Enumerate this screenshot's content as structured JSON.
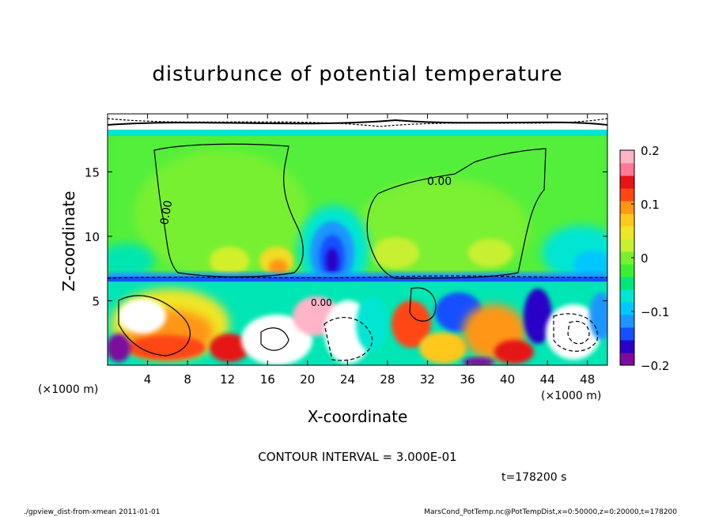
{
  "chart_data": {
    "type": "heatmap",
    "title": "disturbunce of potential temperature",
    "xlabel": "X-coordinate",
    "ylabel": "Z-coordinate",
    "x_unit": "(×1000 m)",
    "y_unit": "(×1000 m)",
    "xlim": [
      0,
      50
    ],
    "ylim": [
      0,
      19.5
    ],
    "x_ticks": [
      4,
      8,
      12,
      16,
      20,
      24,
      28,
      32,
      36,
      40,
      44,
      48
    ],
    "y_ticks": [
      5,
      10,
      15
    ],
    "colorbar": {
      "min": -0.2,
      "max": 0.2,
      "ticks": [
        0.2,
        0.1,
        0,
        -0.1,
        -0.2
      ],
      "tick_labels": [
        "0.2",
        "0.1",
        "0",
        "−0.1",
        "−0.2"
      ],
      "colors": [
        "#7d0b9e",
        "#2a00c8",
        "#1450ff",
        "#1e96ff",
        "#00c8ff",
        "#00e6d2",
        "#00e678",
        "#3cef32",
        "#78f032",
        "#c8f032",
        "#f0e628",
        "#ffc81e",
        "#ff9614",
        "#ff4614",
        "#e61414",
        "#ff7896",
        "#ffb4c8"
      ]
    },
    "contour_labels": [
      "0.00",
      "0.00",
      "0.00"
    ],
    "contour_interval_text": "CONTOUR INTERVAL = 3.000E-01",
    "time_text": "t=178200 s",
    "regions": [
      {
        "name": "upper-green-layer",
        "z_range": [
          7,
          18.5
        ],
        "value": 0.0
      },
      {
        "name": "warm-pocket-left",
        "x": 16,
        "z": 8,
        "value": 0.09
      },
      {
        "name": "warm-pocket-mid",
        "x": 11,
        "z": 8,
        "value": 0.07
      },
      {
        "name": "cold-column",
        "x": 22.5,
        "z": 8.5,
        "value": -0.15
      },
      {
        "name": "cold-pocket-right",
        "x": 46,
        "z": 9,
        "value": -0.06
      },
      {
        "name": "inversion-band",
        "z": 7,
        "value": -0.12
      },
      {
        "name": "lower-boundary-layer",
        "z_range": [
          0,
          6.5
        ],
        "value_range": [
          -0.2,
          0.2
        ]
      }
    ]
  },
  "footer": {
    "left": "./gpview_dist-from-xmean  2011-01-01",
    "right": "MarsCond_PotTemp.nc@PotTempDist,x=0:50000,z=0:20000,t=178200"
  }
}
